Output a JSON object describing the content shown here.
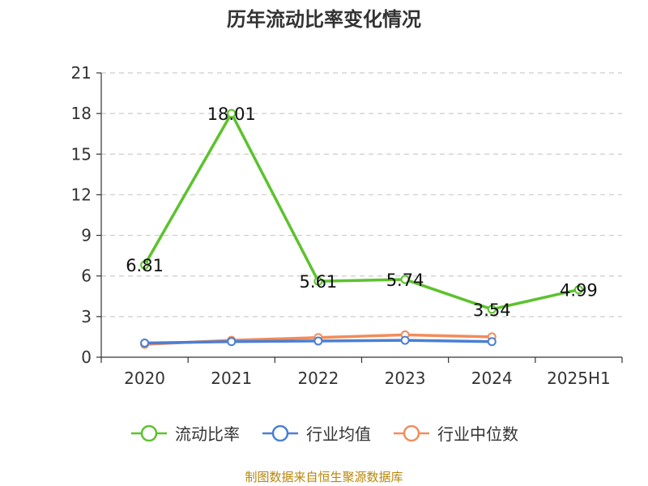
{
  "title": "历年流动比率变化情况",
  "source": "制图数据来自恒生聚源数据库",
  "chart_data": {
    "type": "line",
    "categories": [
      "2020",
      "2021",
      "2022",
      "2023",
      "2024",
      "2025H1"
    ],
    "ylim": [
      0,
      21
    ],
    "yticks": [
      0,
      3,
      6,
      9,
      12,
      15,
      18,
      21
    ],
    "grid": true,
    "legend_position": "bottom",
    "series": [
      {
        "name": "流动比率",
        "color": "#5cc22d",
        "values": [
          6.81,
          18.01,
          5.61,
          5.74,
          3.54,
          4.99
        ],
        "labels": [
          "6.81",
          "18.01",
          "5.61",
          "5.74",
          "3.54",
          "4.99"
        ]
      },
      {
        "name": "行业均值",
        "color": "#4a7fd4",
        "values": [
          1.05,
          1.15,
          1.2,
          1.25,
          1.15,
          null
        ]
      },
      {
        "name": "行业中位数",
        "color": "#f28c5a",
        "values": [
          0.95,
          1.25,
          1.45,
          1.65,
          1.5,
          null
        ]
      }
    ]
  }
}
